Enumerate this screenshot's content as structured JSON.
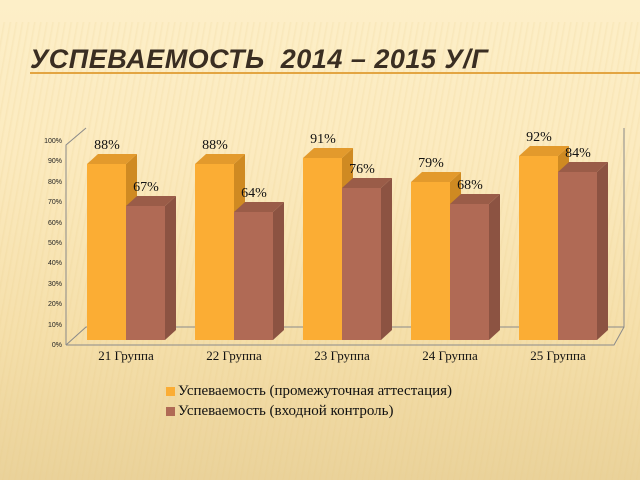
{
  "slide": {
    "title": "УСПЕВАЕМОСТЬ  2014 – 2015 У/Г"
  },
  "colors": {
    "series1_front": "#fbad34",
    "series1_top": "#e39a2c",
    "series1_side": "#cf8a22",
    "series2_front": "#b06a55",
    "series2_top": "#9a5c48",
    "series2_side": "#8c5342",
    "title_rule": "#e3a542",
    "frame": "#8a8a8a"
  },
  "chart_data": {
    "type": "bar",
    "title": "Успеваемость 2014 – 2015 у/г",
    "categories": [
      "21 Группа",
      "22 Группа",
      "23 Группа",
      "24 Группа",
      "25 Группа"
    ],
    "series": [
      {
        "name": "Успеваемость (промежуточная аттестация)",
        "values": [
          88,
          88,
          91,
          79,
          92
        ]
      },
      {
        "name": "Успеваемость (входной контроль)",
        "values": [
          67,
          64,
          76,
          68,
          84
        ]
      }
    ],
    "value_labels": {
      "series1": [
        "88%",
        "88%",
        "91%",
        "79%",
        "92%"
      ],
      "series2": [
        "67%",
        "64%",
        "76%",
        "68%",
        "84%"
      ]
    },
    "xlabel": "",
    "ylabel": "",
    "ylim": [
      0,
      100
    ],
    "yticks": [
      "0%",
      "10%",
      "20%",
      "30%",
      "40%",
      "50%",
      "60%",
      "70%",
      "80%",
      "90%",
      "100%"
    ],
    "grid": false,
    "legend_position": "bottom",
    "style": "3d-clustered-column"
  }
}
